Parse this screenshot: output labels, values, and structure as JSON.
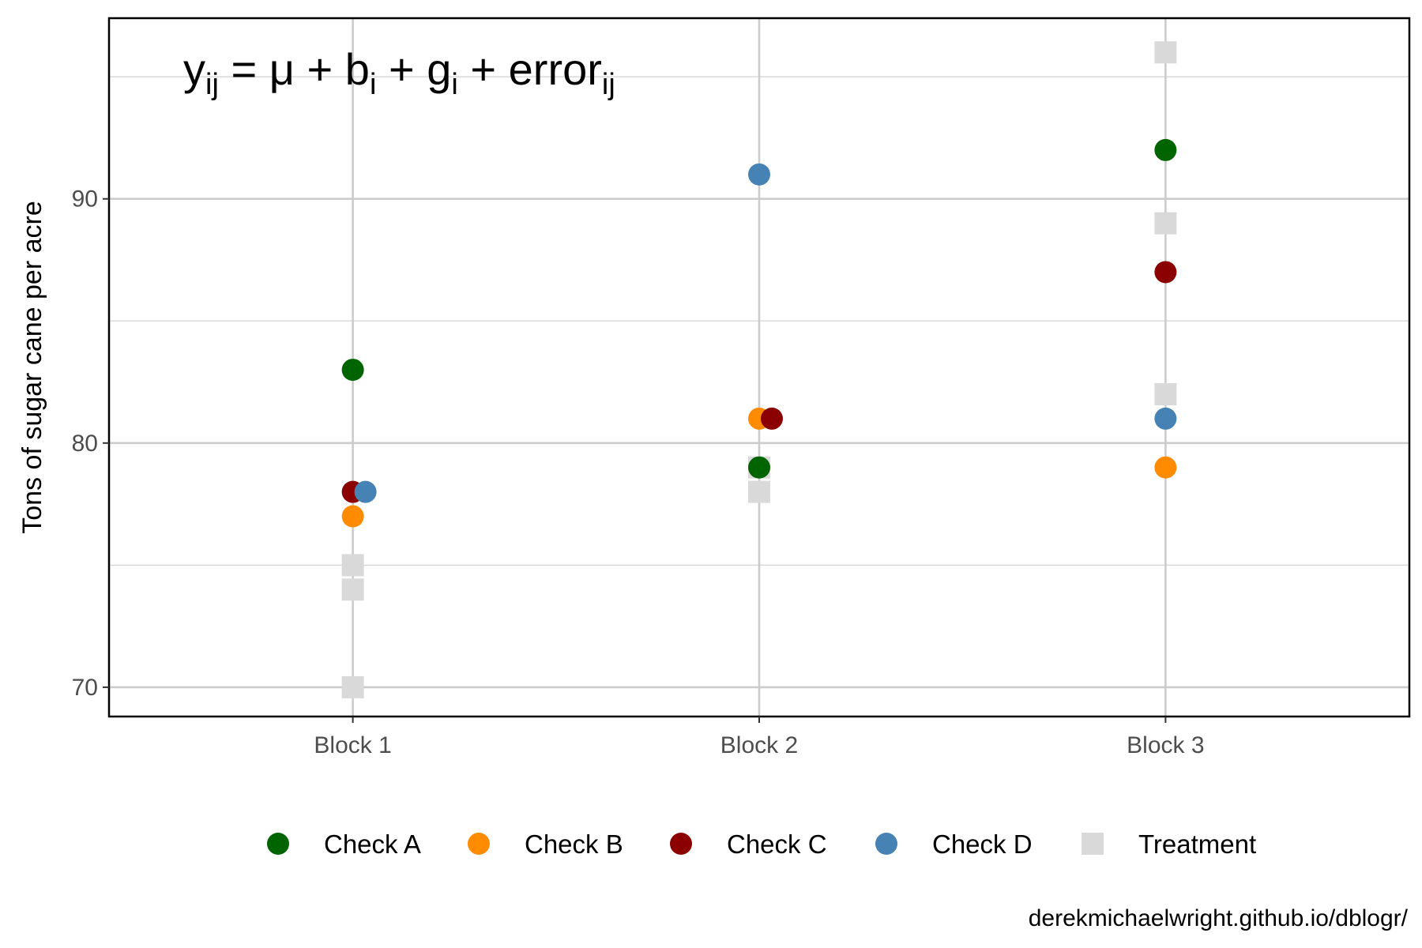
{
  "chart_data": {
    "type": "scatter",
    "ylabel": "Tons of sugar cane per acre",
    "xlabel": "",
    "categories": [
      "Block 1",
      "Block 2",
      "Block 3"
    ],
    "ylim": [
      68.8,
      97.4
    ],
    "yticks": [
      70,
      80,
      90
    ],
    "grid": true,
    "legend_position": "bottom",
    "annotation": {
      "parts": [
        {
          "text": "y",
          "sub": false
        },
        {
          "text": "ij",
          "sub": true
        },
        {
          "text": " = μ + b",
          "sub": false
        },
        {
          "text": "i",
          "sub": true
        },
        {
          "text": " + g",
          "sub": false
        },
        {
          "text": "i",
          "sub": true
        },
        {
          "text": " + error",
          "sub": false
        },
        {
          "text": "ij",
          "sub": true
        }
      ]
    },
    "caption": "derekmichaelwright.github.io/dblogr/",
    "series": [
      {
        "name": "Check A",
        "shape": "circle",
        "color": "#006400",
        "points": [
          {
            "block": "Block 1",
            "y": 83
          },
          {
            "block": "Block 2",
            "y": 79
          },
          {
            "block": "Block 3",
            "y": 92
          }
        ]
      },
      {
        "name": "Check B",
        "shape": "circle",
        "color": "#FF8C00",
        "points": [
          {
            "block": "Block 1",
            "y": 77
          },
          {
            "block": "Block 2",
            "y": 81
          },
          {
            "block": "Block 3",
            "y": 79
          }
        ]
      },
      {
        "name": "Check C",
        "shape": "circle",
        "color": "#8B0000",
        "points": [
          {
            "block": "Block 1",
            "y": 78
          },
          {
            "block": "Block 2",
            "y": 81
          },
          {
            "block": "Block 3",
            "y": 87
          }
        ]
      },
      {
        "name": "Check D",
        "shape": "circle",
        "color": "#4682B4",
        "points": [
          {
            "block": "Block 1",
            "y": 78
          },
          {
            "block": "Block 2",
            "y": 91
          },
          {
            "block": "Block 3",
            "y": 81
          }
        ]
      },
      {
        "name": "Treatment",
        "shape": "square",
        "color": "#D9D9D9",
        "points": [
          {
            "block": "Block 1",
            "y": 75
          },
          {
            "block": "Block 1",
            "y": 74
          },
          {
            "block": "Block 1",
            "y": 70
          },
          {
            "block": "Block 2",
            "y": 79
          },
          {
            "block": "Block 2",
            "y": 78
          },
          {
            "block": "Block 3",
            "y": 96
          },
          {
            "block": "Block 3",
            "y": 89
          },
          {
            "block": "Block 3",
            "y": 82
          }
        ]
      }
    ]
  }
}
